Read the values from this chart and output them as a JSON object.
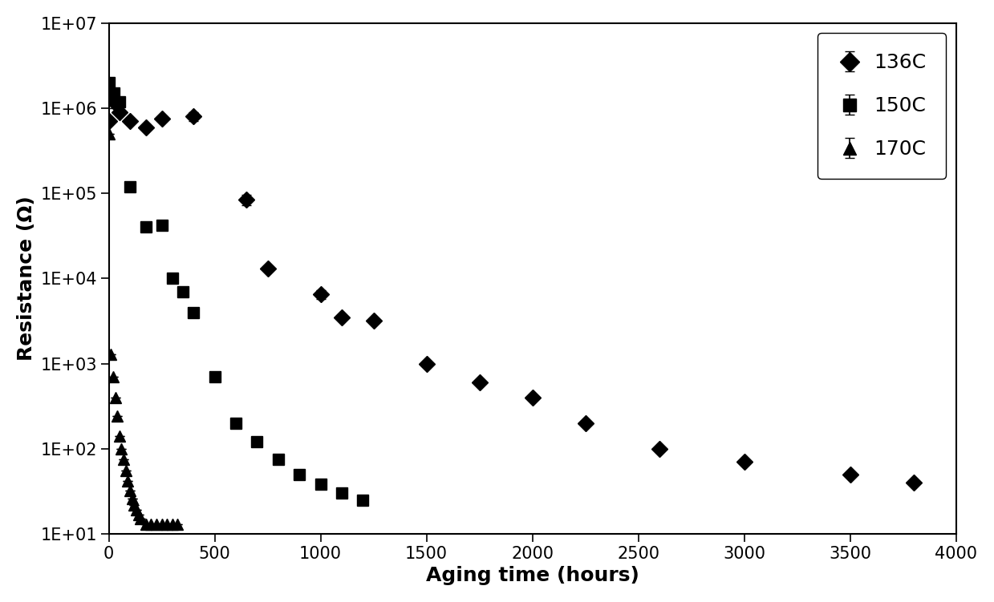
{
  "xlabel": "Aging time (hours)",
  "ylabel": "Resistance (Ω)",
  "xlim": [
    0,
    4000
  ],
  "ylim_log": [
    10,
    10000000
  ],
  "series": {
    "136C": {
      "label": "136C",
      "marker": "D",
      "color": "#000000",
      "x": [
        0,
        25,
        50,
        100,
        175,
        250,
        400,
        650,
        750,
        1000,
        1100,
        1250,
        1500,
        1750,
        2000,
        2250,
        2600,
        3000,
        3500,
        3800
      ],
      "y": [
        700000,
        1200000,
        900000,
        700000,
        600000,
        750000,
        800000,
        85000,
        13000,
        6500,
        3500,
        3200,
        1000,
        600,
        400,
        200,
        100,
        70,
        50,
        40
      ],
      "yerr": [
        0,
        200000,
        0,
        0,
        0,
        0,
        100000,
        12000,
        0,
        800,
        0,
        0,
        0,
        0,
        0,
        0,
        0,
        0,
        0,
        0
      ]
    },
    "150C": {
      "label": "150C",
      "marker": "s",
      "color": "#000000",
      "x": [
        0,
        25,
        50,
        100,
        175,
        250,
        300,
        350,
        400,
        500,
        600,
        700,
        800,
        900,
        1000,
        1100,
        1200
      ],
      "y": [
        2000000,
        1500000,
        1200000,
        120000,
        40000,
        42000,
        10000,
        7000,
        4000,
        700,
        200,
        120,
        75,
        50,
        38,
        30,
        25
      ],
      "yerr": [
        300000,
        100000,
        0,
        15000,
        4000,
        4000,
        0,
        0,
        0,
        0,
        0,
        0,
        0,
        0,
        0,
        0,
        0
      ]
    },
    "170C": {
      "label": "170C",
      "marker": "^",
      "color": "#000000",
      "x": [
        0,
        10,
        20,
        30,
        40,
        50,
        60,
        70,
        80,
        90,
        100,
        110,
        120,
        130,
        140,
        150,
        175,
        200,
        225,
        250,
        275,
        300,
        325
      ],
      "y": [
        500000,
        1300,
        700,
        400,
        240,
        140,
        100,
        75,
        55,
        42,
        32,
        26,
        22,
        19,
        17,
        15,
        13,
        13,
        13,
        13,
        13,
        13,
        13
      ],
      "yerr": [
        0,
        0,
        0,
        0,
        0,
        0,
        0,
        0,
        0,
        0,
        0,
        0,
        0,
        0,
        0,
        0,
        0,
        0,
        0,
        0,
        0,
        0,
        0
      ]
    }
  },
  "series_order": [
    "136C",
    "150C",
    "170C"
  ],
  "xticks": [
    0,
    500,
    1000,
    1500,
    2000,
    2500,
    3000,
    3500,
    4000
  ],
  "background_color": "#ffffff",
  "marker_size": 10,
  "capsize": 4,
  "label_fontsize": 18,
  "tick_fontsize": 15,
  "legend_fontsize": 18
}
